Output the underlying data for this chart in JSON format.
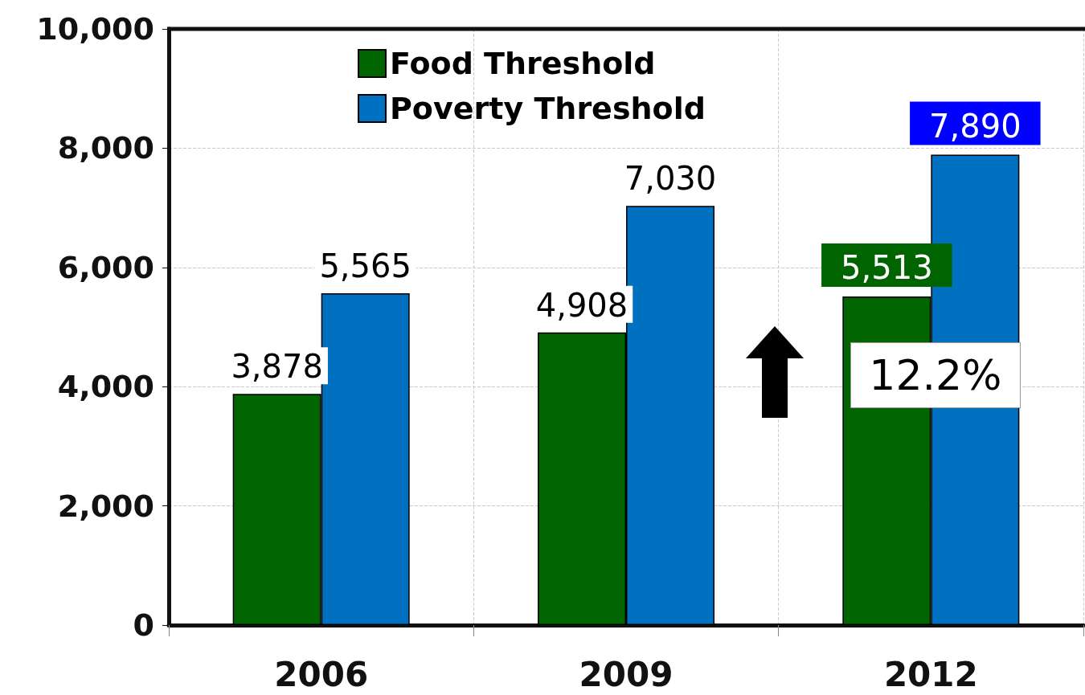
{
  "chart_data": {
    "type": "bar",
    "categories": [
      "2006",
      "2009",
      "2012"
    ],
    "series": [
      {
        "name": "Food Threshold",
        "color": "#006400",
        "values": [
          3878,
          4908,
          5513
        ],
        "value_labels": [
          "3,878",
          "4,908",
          "5,513"
        ]
      },
      {
        "name": "Poverty Threshold",
        "color": "#0070c0",
        "values": [
          5565,
          7030,
          7890
        ],
        "value_labels": [
          "5,565",
          "7,030",
          "7,890"
        ]
      }
    ],
    "ylim": [
      0,
      10000
    ],
    "yticks": [
      0,
      {
        "value": 2000,
        "label": "2,000"
      },
      {
        "value": 4000,
        "label": "4,000"
      },
      {
        "value": 6000,
        "label": "6,000"
      },
      {
        "value": 8000,
        "label": "8,000"
      },
      {
        "value": 10000,
        "label": "10,000"
      }
    ],
    "grid": true,
    "legend": "top left",
    "annotations": [
      {
        "text": "12.2%",
        "x": "2012",
        "y": 4200
      }
    ]
  }
}
